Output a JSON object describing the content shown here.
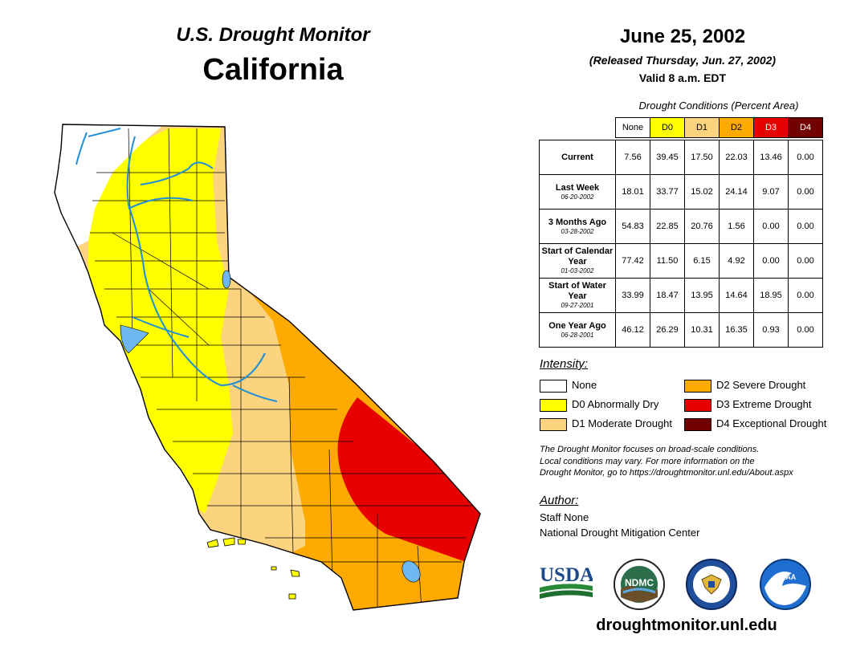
{
  "header": {
    "subtitle": "U.S. Drought Monitor",
    "state": "California",
    "date": "June 25, 2002",
    "released": "(Released Thursday, Jun. 27, 2002)",
    "valid": "Valid 8 a.m. EDT"
  },
  "table": {
    "caption": "Drought Conditions (Percent Area)",
    "columns": [
      {
        "label": "None",
        "color": "#ffffff",
        "text": "#000000"
      },
      {
        "label": "D0",
        "color": "#ffff00",
        "text": "#000000"
      },
      {
        "label": "D1",
        "color": "#fcd37f",
        "text": "#000000"
      },
      {
        "label": "D2",
        "color": "#ffaa00",
        "text": "#000000"
      },
      {
        "label": "D3",
        "color": "#e60000",
        "text": "#ffffff"
      },
      {
        "label": "D4",
        "color": "#730000",
        "text": "#ffffff"
      }
    ],
    "rows": [
      {
        "label": "Current",
        "date": "",
        "values": [
          "7.56",
          "39.45",
          "17.50",
          "22.03",
          "13.46",
          "0.00"
        ]
      },
      {
        "label": "Last Week",
        "date": "06-20-2002",
        "values": [
          "18.01",
          "33.77",
          "15.02",
          "24.14",
          "9.07",
          "0.00"
        ]
      },
      {
        "label": "3 Months Ago",
        "date": "03-28-2002",
        "values": [
          "54.83",
          "22.85",
          "20.76",
          "1.56",
          "0.00",
          "0.00"
        ]
      },
      {
        "label": "Start of Calendar Year",
        "date": "01-03-2002",
        "values": [
          "77.42",
          "11.50",
          "6.15",
          "4.92",
          "0.00",
          "0.00"
        ]
      },
      {
        "label": "Start of Water Year",
        "date": "09-27-2001",
        "values": [
          "33.99",
          "18.47",
          "13.95",
          "14.64",
          "18.95",
          "0.00"
        ]
      },
      {
        "label": "One Year Ago",
        "date": "06-28-2001",
        "values": [
          "46.12",
          "26.29",
          "10.31",
          "16.35",
          "0.93",
          "0.00"
        ]
      }
    ]
  },
  "legend": {
    "title": "Intensity:",
    "items": [
      {
        "label": "None",
        "color": "#ffffff"
      },
      {
        "label": "D0 Abnormally Dry",
        "color": "#ffff00"
      },
      {
        "label": "D1 Moderate Drought",
        "color": "#fcd37f"
      },
      {
        "label": "D2 Severe Drought",
        "color": "#ffaa00"
      },
      {
        "label": "D3 Extreme Drought",
        "color": "#e60000"
      },
      {
        "label": "D4 Exceptional Drought",
        "color": "#730000"
      }
    ]
  },
  "note": {
    "line1": "The Drought Monitor focuses on broad-scale conditions.",
    "line2": "Local conditions may vary. For more information on the",
    "line3": "Drought Monitor, go to https://droughtmonitor.unl.edu/About.aspx"
  },
  "author": {
    "title": "Author:",
    "name": "Staff None",
    "org": "National Drought Mitigation Center"
  },
  "logos": {
    "usda": "USDA",
    "ndmc": "NDMC",
    "noaa": "NOAA"
  },
  "url": "droughtmonitor.unl.edu",
  "map_colors": {
    "none": "#ffffff",
    "d0": "#ffff00",
    "d1": "#fcd37f",
    "d2": "#ffaa00",
    "d3": "#e60000",
    "water": "#6fb7f0",
    "rivers": "#1e8fd8",
    "boundaries": "#000000"
  }
}
